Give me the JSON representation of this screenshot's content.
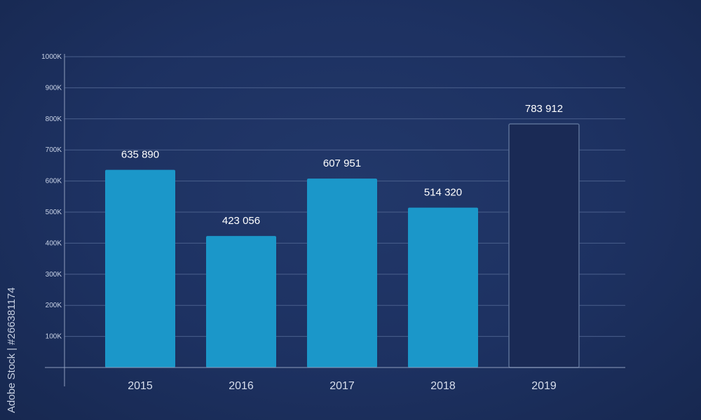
{
  "chart_data": {
    "type": "bar",
    "categories": [
      "2015",
      "2016",
      "2017",
      "2018",
      "2019"
    ],
    "values": [
      635890,
      423056,
      607951,
      514320,
      783912
    ],
    "data_labels": [
      "635 890",
      "423 056",
      "607 951",
      "514 320",
      "783 912"
    ],
    "bar_styles": [
      "filled",
      "filled",
      "filled",
      "filled",
      "outline"
    ],
    "ylim": [
      0,
      1000000
    ],
    "yticks": [
      100000,
      200000,
      300000,
      400000,
      500000,
      600000,
      700000,
      800000,
      900000,
      1000000
    ],
    "ytick_labels": [
      "100K",
      "200K",
      "300K",
      "400K",
      "500K",
      "600K",
      "700K",
      "800K",
      "900K",
      "1000K"
    ],
    "grid": true,
    "legend": "none",
    "colors": {
      "bar_fill": "#1b97c9",
      "bar_outline": "#5a6f96",
      "outline_fill": "#1a2a55",
      "grid": "#4a5f8c",
      "axis": "#8f9dbd"
    }
  },
  "watermark": {
    "side_text": "Adobe Stock | #266381174"
  }
}
